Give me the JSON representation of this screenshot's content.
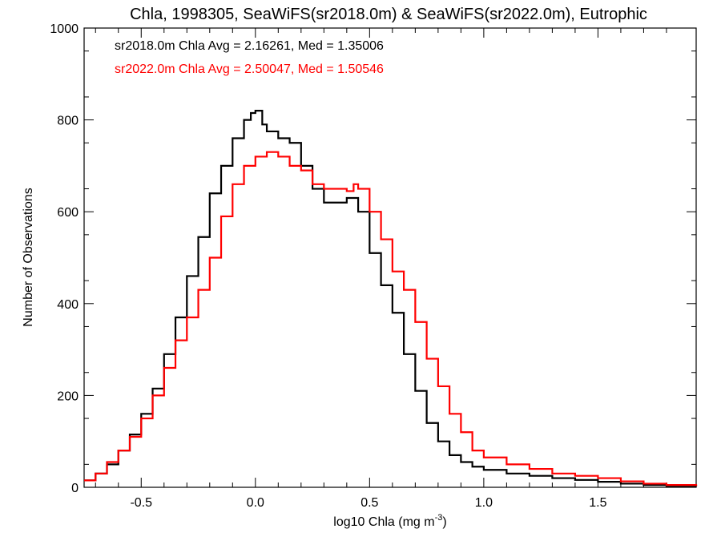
{
  "chart_data": {
    "type": "line",
    "title": "Chla, 1998305, SeaWiFS(sr2018.0m) & SeaWiFS(sr2022.0m), Eutrophic",
    "xlabel_main": "log10 Chla (mg m",
    "xlabel_exp": "-3",
    "xlabel_close": ")",
    "ylabel": "Number of Observations",
    "xlim": [
      -0.75,
      1.93
    ],
    "ylim": [
      0,
      1000
    ],
    "xticks": [
      -0.5,
      0.0,
      0.5,
      1.0,
      1.5
    ],
    "xtick_labels": [
      "-0.5",
      "0.0",
      "0.5",
      "1.0",
      "1.5"
    ],
    "yticks": [
      0,
      200,
      400,
      600,
      800,
      1000
    ],
    "ytick_labels": [
      "0",
      "200",
      "400",
      "600",
      "800",
      "1000"
    ],
    "grid": false,
    "legend_placement": "top-left",
    "annotations": [
      {
        "text": "sr2018.0m Chla Avg = 2.16261, Med = 1.35006",
        "color": "#000000"
      },
      {
        "text": "sr2022.0m Chla Avg = 2.50047, Med = 1.50546",
        "color": "#ff0000"
      }
    ],
    "series": [
      {
        "color": "#000000",
        "x": [
          -0.75,
          -0.7,
          -0.65,
          -0.6,
          -0.55,
          -0.5,
          -0.45,
          -0.4,
          -0.35,
          -0.3,
          -0.25,
          -0.2,
          -0.15,
          -0.1,
          -0.05,
          -0.02,
          0.0,
          0.03,
          0.05,
          0.1,
          0.15,
          0.2,
          0.25,
          0.3,
          0.35,
          0.4,
          0.45,
          0.5,
          0.55,
          0.6,
          0.65,
          0.7,
          0.75,
          0.8,
          0.85,
          0.9,
          0.95,
          1.0,
          1.1,
          1.2,
          1.3,
          1.4,
          1.5,
          1.6,
          1.7,
          1.8,
          1.93
        ],
        "values": [
          15,
          30,
          50,
          80,
          115,
          160,
          215,
          290,
          370,
          460,
          545,
          640,
          700,
          760,
          800,
          815,
          820,
          790,
          775,
          760,
          750,
          700,
          650,
          620,
          620,
          630,
          600,
          510,
          440,
          380,
          290,
          210,
          140,
          100,
          70,
          55,
          45,
          38,
          30,
          25,
          20,
          16,
          12,
          8,
          5,
          3,
          2
        ]
      },
      {
        "color": "#ff0000",
        "x": [
          -0.75,
          -0.7,
          -0.65,
          -0.6,
          -0.55,
          -0.5,
          -0.45,
          -0.4,
          -0.35,
          -0.3,
          -0.25,
          -0.2,
          -0.15,
          -0.1,
          -0.05,
          0.0,
          0.05,
          0.1,
          0.15,
          0.2,
          0.25,
          0.3,
          0.35,
          0.4,
          0.43,
          0.45,
          0.5,
          0.55,
          0.6,
          0.65,
          0.7,
          0.75,
          0.8,
          0.85,
          0.9,
          0.95,
          1.0,
          1.1,
          1.2,
          1.3,
          1.4,
          1.5,
          1.6,
          1.7,
          1.8,
          1.93
        ],
        "values": [
          15,
          30,
          55,
          80,
          110,
          150,
          200,
          260,
          320,
          370,
          430,
          500,
          590,
          660,
          700,
          720,
          730,
          720,
          700,
          690,
          660,
          650,
          650,
          645,
          660,
          650,
          600,
          540,
          470,
          430,
          360,
          280,
          220,
          160,
          120,
          80,
          65,
          50,
          40,
          30,
          25,
          20,
          13,
          8,
          5,
          3
        ]
      }
    ]
  }
}
